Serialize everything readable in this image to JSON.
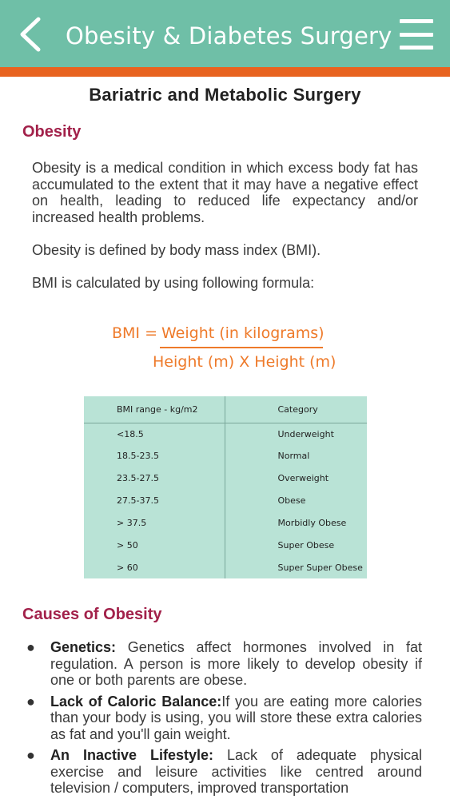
{
  "header": {
    "title": "Obesity & Diabetes Surgery",
    "back_icon": "chevron-left-icon",
    "menu_icon": "hamburger-menu-icon",
    "bg_color": "#6fbfa7",
    "stripe_color": "#e8631f"
  },
  "page_title": "Bariatric and Metabolic Surgery",
  "obesity": {
    "heading": "Obesity",
    "paragraphs": [
      "Obesity is a medical condition in which excess body fat has accumulated to the extent that it may have a negative effect on health, leading to reduced life expectancy and/or increased health problems.",
      "Obesity is defined by body mass index (BMI).",
      "BMI is calculated by using following formula:"
    ]
  },
  "formula": {
    "lhs": "BMI =",
    "numerator": "Weight (in kilograms)",
    "denominator": "Height (m) X Height (m)"
  },
  "bmi_table": {
    "headers": [
      "BMI range - kg/m2",
      "Category"
    ],
    "rows": [
      [
        "<18.5",
        "Underweight"
      ],
      [
        "18.5-23.5",
        "Normal"
      ],
      [
        "23.5-27.5",
        "Overweight"
      ],
      [
        "27.5-37.5",
        "Obese"
      ],
      [
        "> 37.5",
        "Morbidly Obese"
      ],
      [
        "> 50",
        "Super Obese"
      ],
      [
        "> 60",
        "Super Super Obese"
      ]
    ]
  },
  "causes": {
    "heading": "Causes of Obesity",
    "items": [
      {
        "term": "Genetics:",
        "text": " Genetics affect hormones involved in fat regulation. A person is more likely to develop obesity if one or both parents are obese."
      },
      {
        "term": "Lack of Caloric Balance:",
        "text": "If you are eating more calories than your body is using, you will store these extra calories as fat and you'll gain weight."
      },
      {
        "term": "An Inactive Lifestyle:",
        "text": " Lack of adequate physical exercise and leisure activities like centred around television / computers, improved transportation"
      }
    ]
  }
}
